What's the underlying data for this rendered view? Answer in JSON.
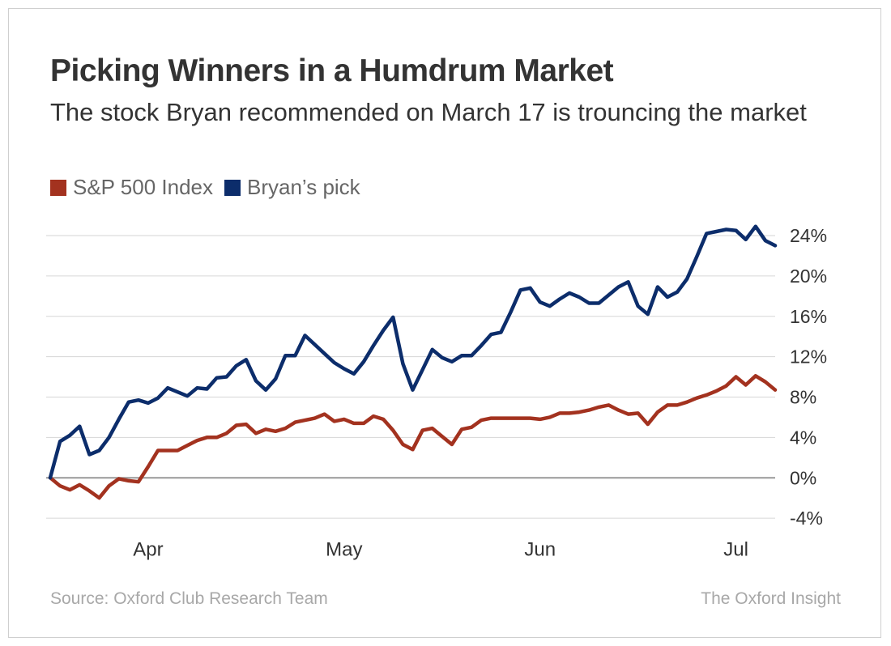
{
  "chart_data": {
    "type": "line",
    "title": "Picking Winners in a Humdrum Market",
    "subtitle": "The stock Bryan recommended on March 17 is trouncing the market",
    "source": "Source: Oxford Club Research Team",
    "credit": "The Oxford Insight",
    "categories": [
      null,
      null,
      null,
      null,
      null,
      null,
      null,
      null,
      null,
      null,
      "Apr",
      null,
      null,
      null,
      null,
      null,
      null,
      null,
      null,
      null,
      null,
      null,
      null,
      null,
      null,
      null,
      null,
      null,
      null,
      null,
      "May",
      null,
      null,
      null,
      null,
      null,
      null,
      null,
      null,
      null,
      null,
      null,
      null,
      null,
      null,
      null,
      null,
      null,
      null,
      null,
      "Jun",
      null,
      null,
      null,
      null,
      null,
      null,
      null,
      null,
      null,
      null,
      null,
      null,
      null,
      null,
      null,
      null,
      null,
      null,
      null,
      "Jul",
      null,
      null,
      null,
      null
    ],
    "series": [
      {
        "name": "S&P 500 Index",
        "color": "#a3321f",
        "values": [
          0,
          -0.8,
          -1.2,
          -0.7,
          -1.3,
          -2.0,
          -0.8,
          -0.1,
          -0.3,
          -0.4,
          1.1,
          2.7,
          2.7,
          2.7,
          3.2,
          3.7,
          4.0,
          4.0,
          4.4,
          5.2,
          5.3,
          4.4,
          4.8,
          4.6,
          4.9,
          5.5,
          5.7,
          5.9,
          6.3,
          5.6,
          5.8,
          5.4,
          5.4,
          6.1,
          5.8,
          4.7,
          3.3,
          2.8,
          4.7,
          4.9,
          4.1,
          3.3,
          4.8,
          5.0,
          5.7,
          5.9,
          5.9,
          5.9,
          5.9,
          5.9,
          5.8,
          6.0,
          6.4,
          6.4,
          6.5,
          6.7,
          7.0,
          7.2,
          6.7,
          6.3,
          6.4,
          5.3,
          6.5,
          7.2,
          7.2,
          7.5,
          7.9,
          8.2,
          8.6,
          9.1,
          10.0,
          9.2,
          10.1,
          9.5,
          8.7
        ]
      },
      {
        "name": "Bryan’s pick",
        "color": "#0c2d6b",
        "values": [
          0,
          3.6,
          4.2,
          5.1,
          2.3,
          2.7,
          4.0,
          5.8,
          7.5,
          7.7,
          7.4,
          7.9,
          8.9,
          8.5,
          8.1,
          8.9,
          8.8,
          9.9,
          10.0,
          11.1,
          11.7,
          9.6,
          8.7,
          9.8,
          12.1,
          12.1,
          14.1,
          13.2,
          12.3,
          11.4,
          10.8,
          10.3,
          11.5,
          13.1,
          14.6,
          15.9,
          11.3,
          8.7,
          10.7,
          12.7,
          11.9,
          11.5,
          12.1,
          12.1,
          13.1,
          14.2,
          14.4,
          16.4,
          18.6,
          18.8,
          17.4,
          17.0,
          17.7,
          18.3,
          17.9,
          17.3,
          17.3,
          18.1,
          18.9,
          19.4,
          17.0,
          16.2,
          18.9,
          17.9,
          18.4,
          19.7,
          21.9,
          24.2,
          24.4,
          24.6,
          24.5,
          23.6,
          24.9,
          23.5,
          23.0
        ]
      }
    ],
    "ylim": [
      -6,
      26
    ],
    "yticks": [
      {
        "value": -4,
        "label": "-4%"
      },
      {
        "value": 0,
        "label": "0%"
      },
      {
        "value": 4,
        "label": "4%"
      },
      {
        "value": 8,
        "label": "8%"
      },
      {
        "value": 12,
        "label": "12%"
      },
      {
        "value": 16,
        "label": "16%"
      },
      {
        "value": 20,
        "label": "20%"
      },
      {
        "value": 24,
        "label": "24%"
      }
    ],
    "grid": true
  }
}
